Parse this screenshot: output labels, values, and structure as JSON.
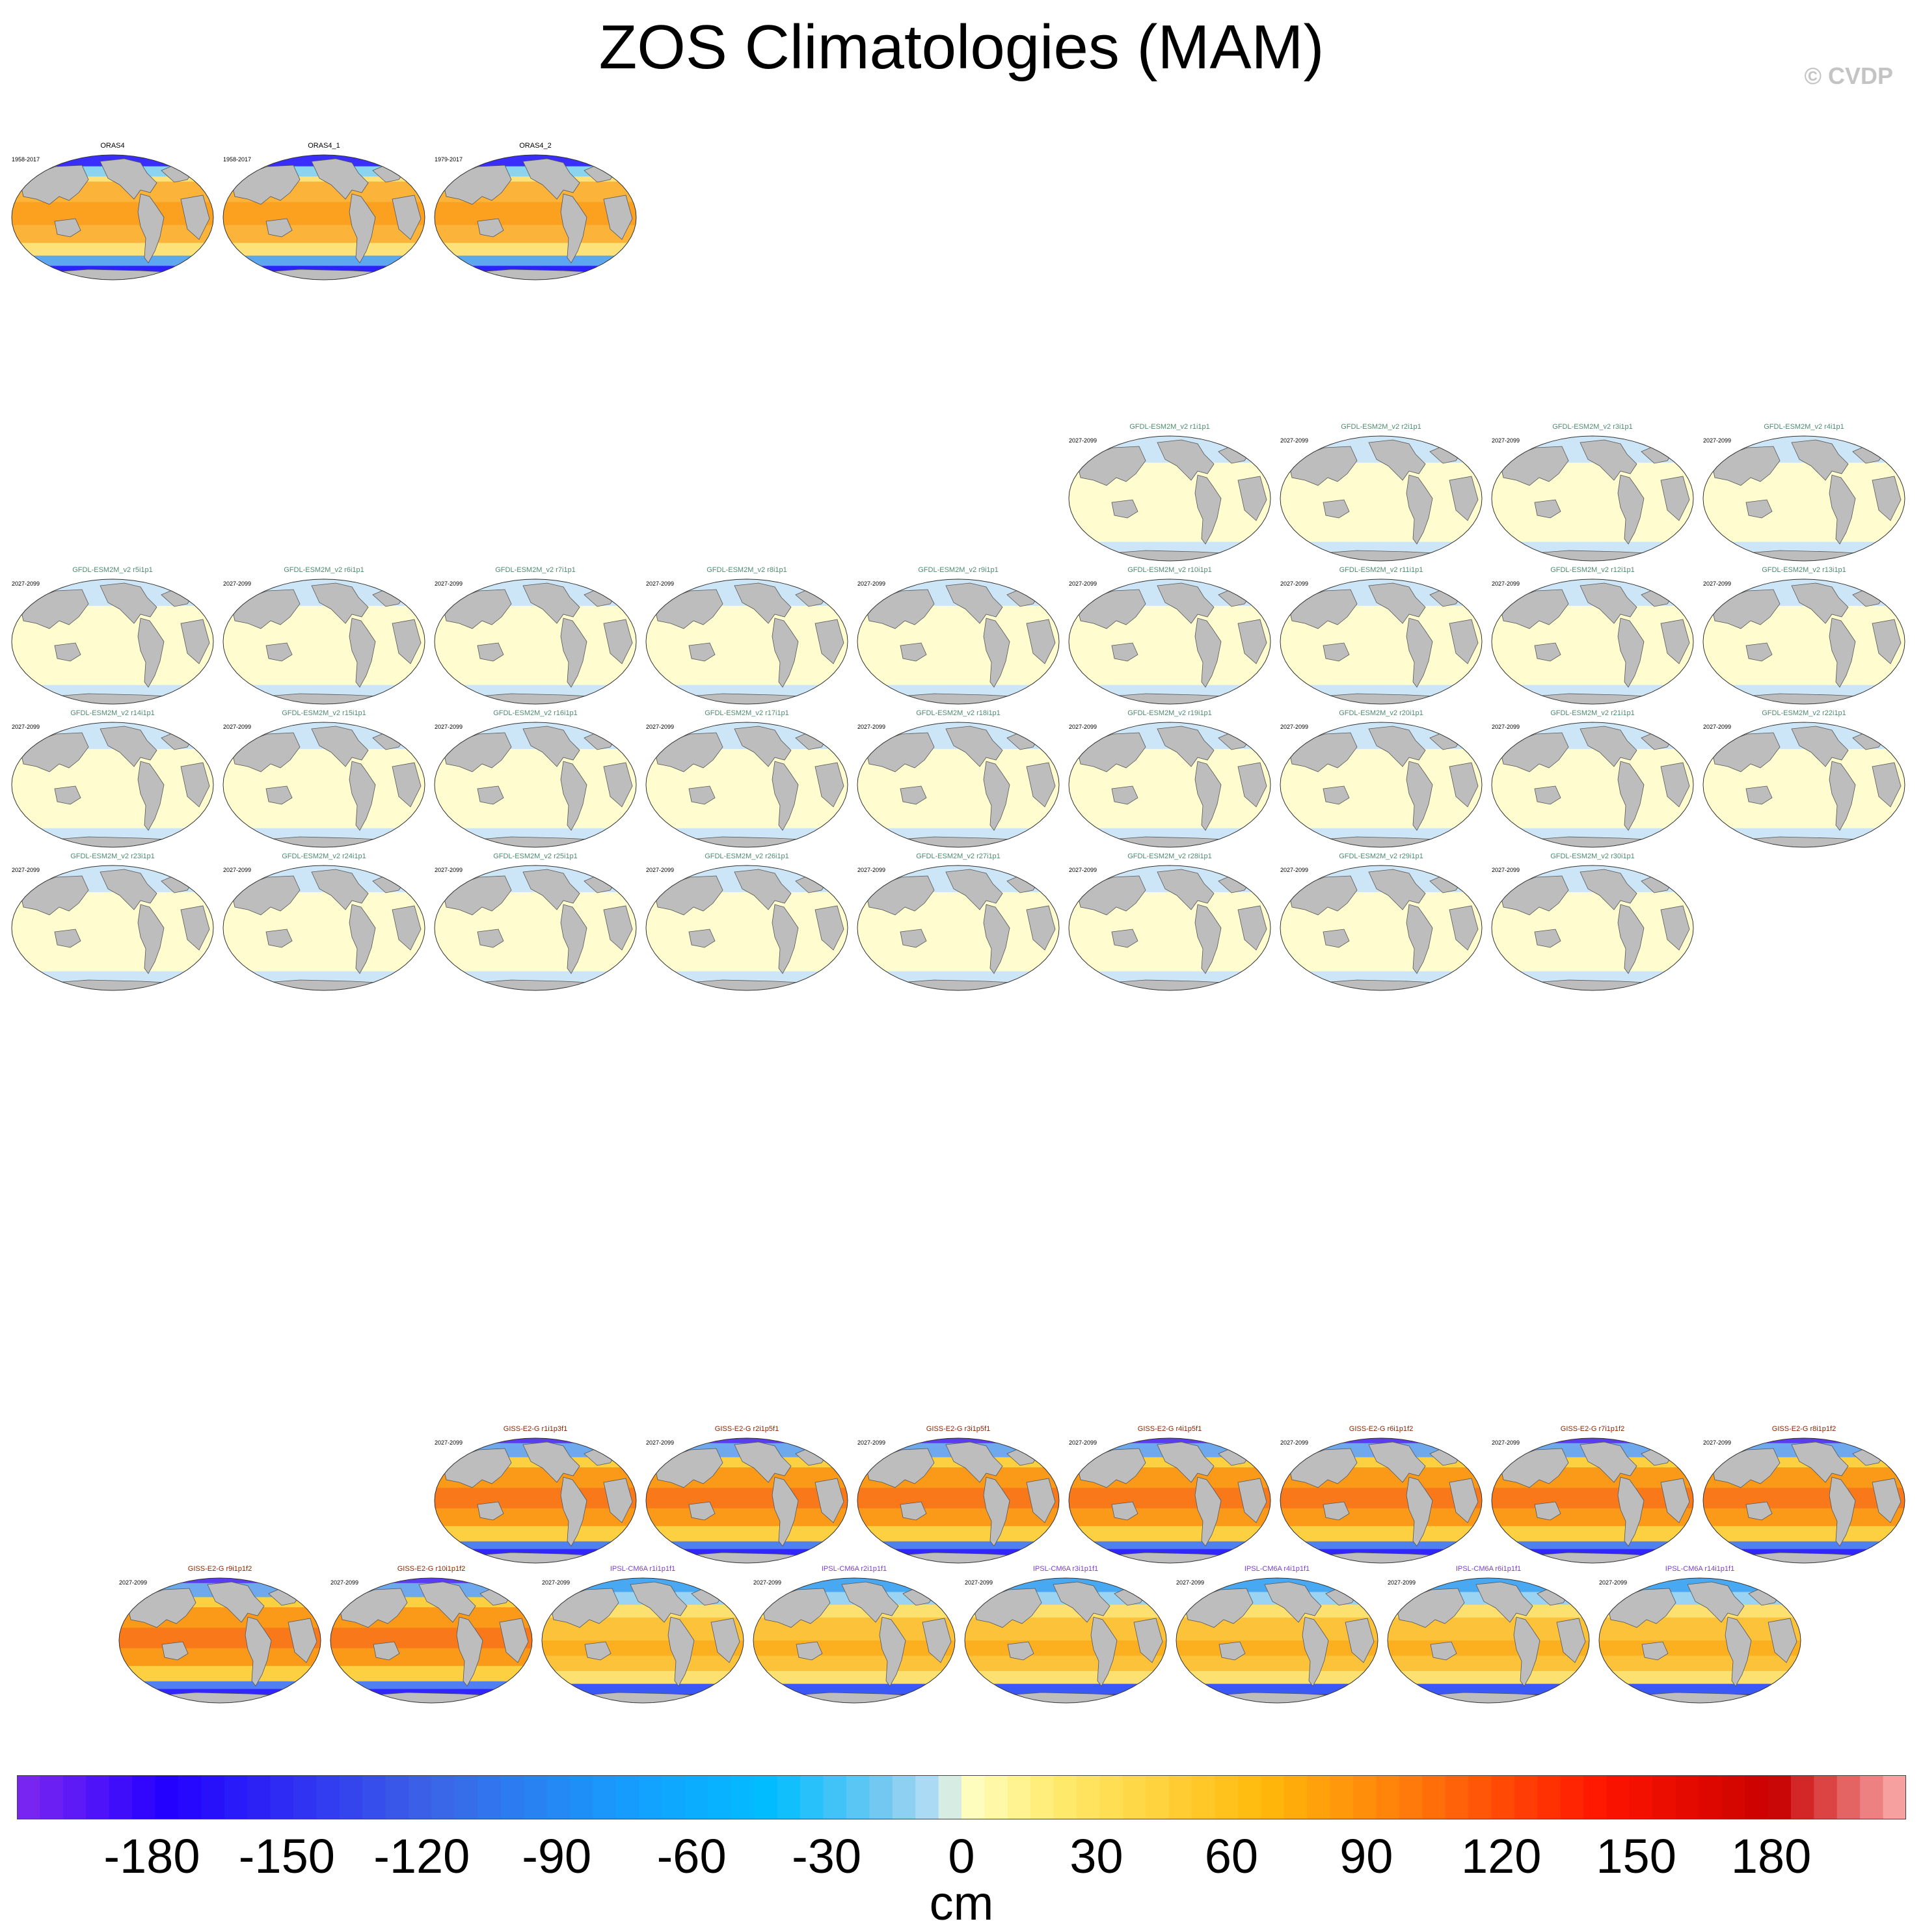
{
  "title": "ZOS Climatologies (MAM)",
  "copyright": "© CVDP",
  "colorbar": {
    "units": "cm",
    "ticks": [
      "-180",
      "-150",
      "-120",
      "-90",
      "-60",
      "-30",
      "0",
      "30",
      "60",
      "90",
      "120",
      "150",
      "180"
    ],
    "range": [
      -210,
      210
    ],
    "bins": 82
  },
  "panels": [
    {
      "title": "ORAS4",
      "years": "1958-2017",
      "group": "obs"
    },
    {
      "title": "ORAS4_1",
      "years": "1958-2017",
      "group": "obs"
    },
    {
      "title": "ORAS4_2",
      "years": "1979-2017",
      "group": "obs"
    },
    {
      "title": "GFDL-ESM2M_v2 r1i1p1",
      "years": "2027-2099",
      "group": "gfdl"
    },
    {
      "title": "GFDL-ESM2M_v2 r2i1p1",
      "years": "2027-2099",
      "group": "gfdl"
    },
    {
      "title": "GFDL-ESM2M_v2 r3i1p1",
      "years": "2027-2099",
      "group": "gfdl"
    },
    {
      "title": "GFDL-ESM2M_v2 r4i1p1",
      "years": "2027-2099",
      "group": "gfdl"
    },
    {
      "title": "GFDL-ESM2M_v2 r5i1p1",
      "years": "2027-2099",
      "group": "gfdl"
    },
    {
      "title": "GFDL-ESM2M_v2 r6i1p1",
      "years": "2027-2099",
      "group": "gfdl"
    },
    {
      "title": "GFDL-ESM2M_v2 r7i1p1",
      "years": "2027-2099",
      "group": "gfdl"
    },
    {
      "title": "GFDL-ESM2M_v2 r8i1p1",
      "years": "2027-2099",
      "group": "gfdl"
    },
    {
      "title": "GFDL-ESM2M_v2 r9i1p1",
      "years": "2027-2099",
      "group": "gfdl"
    },
    {
      "title": "GFDL-ESM2M_v2 r10i1p1",
      "years": "2027-2099",
      "group": "gfdl"
    },
    {
      "title": "GFDL-ESM2M_v2 r11i1p1",
      "years": "2027-2099",
      "group": "gfdl"
    },
    {
      "title": "GFDL-ESM2M_v2 r12i1p1",
      "years": "2027-2099",
      "group": "gfdl"
    },
    {
      "title": "GFDL-ESM2M_v2 r13i1p1",
      "years": "2027-2099",
      "group": "gfdl"
    },
    {
      "title": "GFDL-ESM2M_v2 r14i1p1",
      "years": "2027-2099",
      "group": "gfdl"
    },
    {
      "title": "GFDL-ESM2M_v2 r15i1p1",
      "years": "2027-2099",
      "group": "gfdl"
    },
    {
      "title": "GFDL-ESM2M_v2 r16i1p1",
      "years": "2027-2099",
      "group": "gfdl"
    },
    {
      "title": "GFDL-ESM2M_v2 r17i1p1",
      "years": "2027-2099",
      "group": "gfdl"
    },
    {
      "title": "GFDL-ESM2M_v2 r18i1p1",
      "years": "2027-2099",
      "group": "gfdl"
    },
    {
      "title": "GFDL-ESM2M_v2 r19i1p1",
      "years": "2027-2099",
      "group": "gfdl"
    },
    {
      "title": "GFDL-ESM2M_v2 r20i1p1",
      "years": "2027-2099",
      "group": "gfdl"
    },
    {
      "title": "GFDL-ESM2M_v2 r21i1p1",
      "years": "2027-2099",
      "group": "gfdl"
    },
    {
      "title": "GFDL-ESM2M_v2 r22i1p1",
      "years": "2027-2099",
      "group": "gfdl"
    },
    {
      "title": "GFDL-ESM2M_v2 r23i1p1",
      "years": "2027-2099",
      "group": "gfdl"
    },
    {
      "title": "GFDL-ESM2M_v2 r24i1p1",
      "years": "2027-2099",
      "group": "gfdl"
    },
    {
      "title": "GFDL-ESM2M_v2 r25i1p1",
      "years": "2027-2099",
      "group": "gfdl"
    },
    {
      "title": "GFDL-ESM2M_v2 r26i1p1",
      "years": "2027-2099",
      "group": "gfdl"
    },
    {
      "title": "GFDL-ESM2M_v2 r27i1p1",
      "years": "2027-2099",
      "group": "gfdl"
    },
    {
      "title": "GFDL-ESM2M_v2 r28i1p1",
      "years": "2027-2099",
      "group": "gfdl"
    },
    {
      "title": "GFDL-ESM2M_v2 r29i1p1",
      "years": "2027-2099",
      "group": "gfdl"
    },
    {
      "title": "GFDL-ESM2M_v2 r30i1p1",
      "years": "2027-2099",
      "group": "gfdl"
    },
    {
      "title": "GISS-E2-G r1i1p3f1",
      "years": "2027-2099",
      "group": "giss"
    },
    {
      "title": "GISS-E2-G r2i1p5f1",
      "years": "2027-2099",
      "group": "giss"
    },
    {
      "title": "GISS-E2-G r3i1p5f1",
      "years": "2027-2099",
      "group": "giss"
    },
    {
      "title": "GISS-E2-G r4i1p5f1",
      "years": "2027-2099",
      "group": "giss"
    },
    {
      "title": "GISS-E2-G r6i1p1f2",
      "years": "2027-2099",
      "group": "giss"
    },
    {
      "title": "GISS-E2-G r7i1p1f2",
      "years": "2027-2099",
      "group": "giss"
    },
    {
      "title": "GISS-E2-G r8i1p1f2",
      "years": "2027-2099",
      "group": "giss"
    },
    {
      "title": "GISS-E2-G r9i1p1f2",
      "years": "2027-2099",
      "group": "giss"
    },
    {
      "title": "GISS-E2-G r10i1p1f2",
      "years": "2027-2099",
      "group": "giss"
    },
    {
      "title": "IPSL-CM6A r1i1p1f1",
      "years": "2027-2099",
      "group": "ipsl"
    },
    {
      "title": "IPSL-CM6A r2i1p1f1",
      "years": "2027-2099",
      "group": "ipsl"
    },
    {
      "title": "IPSL-CM6A r3i1p1f1",
      "years": "2027-2099",
      "group": "ipsl"
    },
    {
      "title": "IPSL-CM6A r4i1p1f1",
      "years": "2027-2099",
      "group": "ipsl"
    },
    {
      "title": "IPSL-CM6A r6i1p1f1",
      "years": "2027-2099",
      "group": "ipsl"
    },
    {
      "title": "IPSL-CM6A r14i1p1f1",
      "years": "2027-2099",
      "group": "ipsl"
    }
  ],
  "group_colors": {
    "obs": "#000000",
    "gfdl": "#4f8a70",
    "giss": "#8b2500",
    "ipsl": "#7a3fd1"
  }
}
